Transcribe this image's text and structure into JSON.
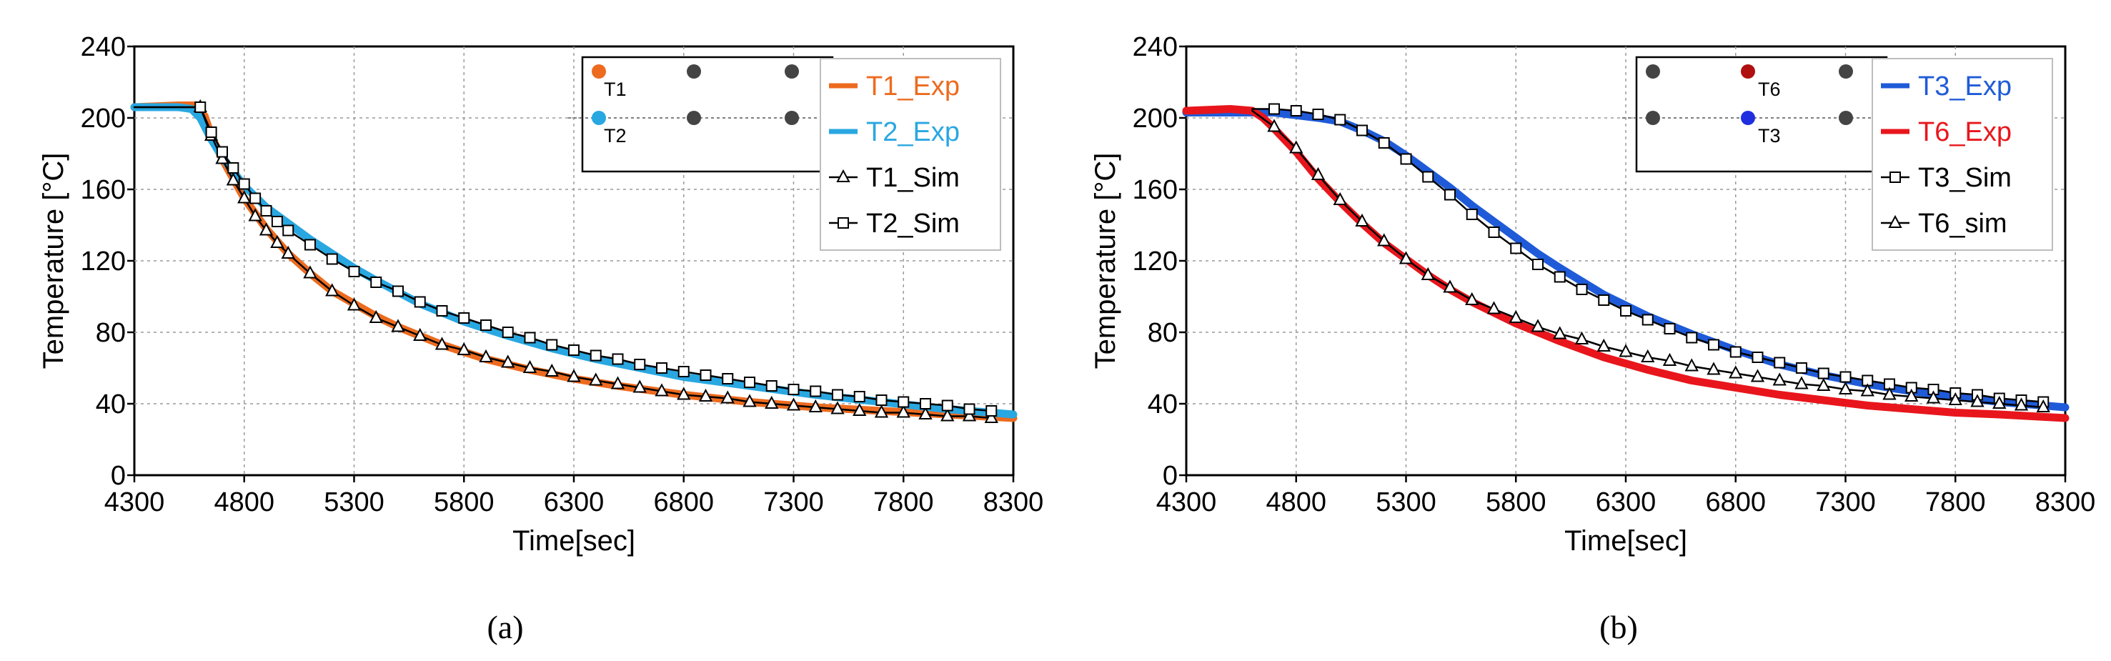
{
  "chart_data": [
    {
      "type": "line",
      "caption": "(a)",
      "xlabel": "Time[sec]",
      "ylabel": "Temperature [°C]",
      "xlim": [
        4300,
        8300
      ],
      "ylim": [
        0,
        240
      ],
      "xticks": [
        4300,
        4800,
        5300,
        5800,
        6300,
        6800,
        7300,
        7800,
        8300
      ],
      "yticks": [
        0,
        40,
        80,
        120,
        160,
        200,
        240
      ],
      "grid": true,
      "legend_position": "top-right",
      "inset": {
        "position": "top-left-of-legend",
        "labels": [
          "T1",
          "T2"
        ],
        "points": [
          {
            "label": "T1",
            "color": "#ED6B1F"
          },
          {
            "label": "",
            "color": "#444444"
          },
          {
            "label": "",
            "color": "#444444"
          },
          {
            "label": "T2",
            "color": "#29A7E1"
          },
          {
            "label": "",
            "color": "#444444"
          },
          {
            "label": "",
            "color": "#444444"
          }
        ]
      },
      "series": [
        {
          "name": "T1_Exp",
          "color": "#ED6B1F",
          "style": "thick-line",
          "x": [
            4300,
            4500,
            4570,
            4620,
            4650,
            4700,
            4800,
            4900,
            5000,
            5100,
            5200,
            5300,
            5400,
            5500,
            5700,
            5900,
            6100,
            6300,
            6500,
            6800,
            7100,
            7400,
            7700,
            8000,
            8300
          ],
          "y": [
            206,
            207,
            207,
            201,
            190,
            177,
            155,
            138,
            124,
            113,
            103,
            96,
            89,
            83,
            73,
            65,
            59,
            54,
            50,
            45,
            41,
            38,
            36,
            34,
            32
          ]
        },
        {
          "name": "T2_Exp",
          "color": "#29A7E1",
          "style": "thick-line",
          "x": [
            4300,
            4500,
            4560,
            4600,
            4650,
            4700,
            4800,
            4900,
            5000,
            5100,
            5200,
            5300,
            5400,
            5600,
            5800,
            6000,
            6200,
            6400,
            6600,
            6800,
            7100,
            7400,
            7700,
            8000,
            8300
          ],
          "y": [
            206,
            206,
            205,
            200,
            188,
            178,
            162,
            150,
            141,
            132,
            124,
            116,
            109,
            96,
            86,
            78,
            71,
            65,
            60,
            55,
            50,
            45,
            41,
            37,
            34
          ]
        },
        {
          "name": "T1_Sim",
          "color": "#000000",
          "style": "line-triangle",
          "x": [
            4300,
            4600,
            4650,
            4700,
            4750,
            4800,
            4850,
            4900,
            4950,
            5000,
            5100,
            5200,
            5300,
            5400,
            5500,
            5600,
            5700,
            5800,
            5900,
            6000,
            6100,
            6200,
            6300,
            6400,
            6500,
            6600,
            6700,
            6800,
            6900,
            7000,
            7100,
            7200,
            7300,
            7400,
            7500,
            7600,
            7700,
            7800,
            7900,
            8000,
            8100,
            8200
          ],
          "y": [
            206,
            206,
            190,
            177,
            165,
            155,
            145,
            137,
            130,
            124,
            113,
            103,
            95,
            88,
            83,
            78,
            73,
            70,
            66,
            63,
            60,
            58,
            55,
            53,
            51,
            49,
            47,
            45,
            44,
            43,
            41,
            40,
            39,
            38,
            37,
            36,
            35,
            35,
            34,
            33,
            33,
            32
          ]
        },
        {
          "name": "T2_Sim",
          "color": "#000000",
          "style": "line-square",
          "x": [
            4300,
            4600,
            4650,
            4700,
            4750,
            4800,
            4850,
            4900,
            4950,
            5000,
            5100,
            5200,
            5300,
            5400,
            5500,
            5600,
            5700,
            5800,
            5900,
            6000,
            6100,
            6200,
            6300,
            6400,
            6500,
            6600,
            6700,
            6800,
            6900,
            7000,
            7100,
            7200,
            7300,
            7400,
            7500,
            7600,
            7700,
            7800,
            7900,
            8000,
            8100,
            8200
          ],
          "y": [
            206,
            206,
            192,
            181,
            172,
            163,
            155,
            148,
            142,
            137,
            129,
            121,
            114,
            108,
            103,
            97,
            92,
            88,
            84,
            80,
            77,
            73,
            70,
            67,
            65,
            62,
            60,
            58,
            56,
            54,
            52,
            50,
            48,
            47,
            45,
            44,
            42,
            41,
            40,
            39,
            37,
            36
          ]
        }
      ]
    },
    {
      "type": "line",
      "caption": "(b)",
      "xlabel": "Time[sec]",
      "ylabel": "Temperature [°C]",
      "xlim": [
        4300,
        8300
      ],
      "ylim": [
        0,
        240
      ],
      "xticks": [
        4300,
        4800,
        5300,
        5800,
        6300,
        6800,
        7300,
        7800,
        8300
      ],
      "yticks": [
        0,
        40,
        80,
        120,
        160,
        200,
        240
      ],
      "grid": true,
      "legend_position": "top-right",
      "inset": {
        "position": "top-left-of-legend",
        "labels": [
          "T6",
          "T3"
        ],
        "points": [
          {
            "label": "",
            "color": "#444444"
          },
          {
            "label": "T6",
            "color": "#B01010"
          },
          {
            "label": "",
            "color": "#444444"
          },
          {
            "label": "",
            "color": "#444444"
          },
          {
            "label": "T3",
            "color": "#1F2FE0"
          },
          {
            "label": "",
            "color": "#444444"
          }
        ]
      },
      "series": [
        {
          "name": "T3_Exp",
          "color": "#1F5BD8",
          "style": "thick-line",
          "x": [
            4300,
            4500,
            4700,
            4900,
            5000,
            5100,
            5200,
            5300,
            5400,
            5500,
            5600,
            5700,
            5800,
            5900,
            6000,
            6200,
            6400,
            6600,
            6800,
            7000,
            7200,
            7400,
            7600,
            7800,
            8000,
            8300
          ],
          "y": [
            203,
            203,
            203,
            200,
            198,
            193,
            187,
            179,
            170,
            161,
            151,
            142,
            133,
            124,
            116,
            101,
            89,
            79,
            70,
            62,
            56,
            51,
            47,
            44,
            41,
            38
          ]
        },
        {
          "name": "T6_Exp",
          "color": "#E8161C",
          "style": "thick-line",
          "x": [
            4300,
            4500,
            4600,
            4650,
            4700,
            4800,
            4900,
            5000,
            5100,
            5200,
            5300,
            5400,
            5500,
            5600,
            5800,
            6000,
            6200,
            6400,
            6600,
            6800,
            7000,
            7200,
            7400,
            7600,
            7800,
            8000,
            8300
          ],
          "y": [
            204,
            205,
            204,
            200,
            194,
            181,
            166,
            153,
            141,
            130,
            121,
            112,
            104,
            97,
            85,
            75,
            66,
            59,
            53,
            49,
            45,
            42,
            39,
            37,
            35,
            34,
            32
          ]
        },
        {
          "name": "T3_Sim",
          "color": "#000000",
          "style": "line-square",
          "x": [
            4600,
            4700,
            4800,
            4900,
            5000,
            5100,
            5200,
            5300,
            5400,
            5500,
            5600,
            5700,
            5800,
            5900,
            6000,
            6100,
            6200,
            6300,
            6400,
            6500,
            6600,
            6700,
            6800,
            6900,
            7000,
            7100,
            7200,
            7300,
            7400,
            7500,
            7600,
            7700,
            7800,
            7900,
            8000,
            8100,
            8200
          ],
          "y": [
            205,
            205,
            204,
            202,
            199,
            193,
            186,
            177,
            167,
            157,
            146,
            136,
            127,
            118,
            111,
            104,
            98,
            92,
            87,
            82,
            77,
            73,
            69,
            66,
            63,
            60,
            57,
            55,
            53,
            51,
            49,
            48,
            46,
            45,
            43,
            42,
            41
          ]
        },
        {
          "name": "T6_sim",
          "color": "#000000",
          "style": "line-triangle",
          "x": [
            4600,
            4700,
            4800,
            4900,
            5000,
            5100,
            5200,
            5300,
            5400,
            5500,
            5600,
            5700,
            5800,
            5900,
            6000,
            6100,
            6200,
            6300,
            6400,
            6500,
            6600,
            6700,
            6800,
            6900,
            7000,
            7100,
            7200,
            7300,
            7400,
            7500,
            7600,
            7700,
            7800,
            7900,
            8000,
            8100,
            8200
          ],
          "y": [
            204,
            195,
            183,
            168,
            154,
            142,
            131,
            121,
            112,
            105,
            98,
            93,
            88,
            83,
            79,
            76,
            72,
            69,
            66,
            64,
            61,
            59,
            57,
            55,
            53,
            51,
            50,
            48,
            47,
            45,
            44,
            43,
            42,
            41,
            40,
            39,
            38
          ]
        }
      ]
    }
  ]
}
